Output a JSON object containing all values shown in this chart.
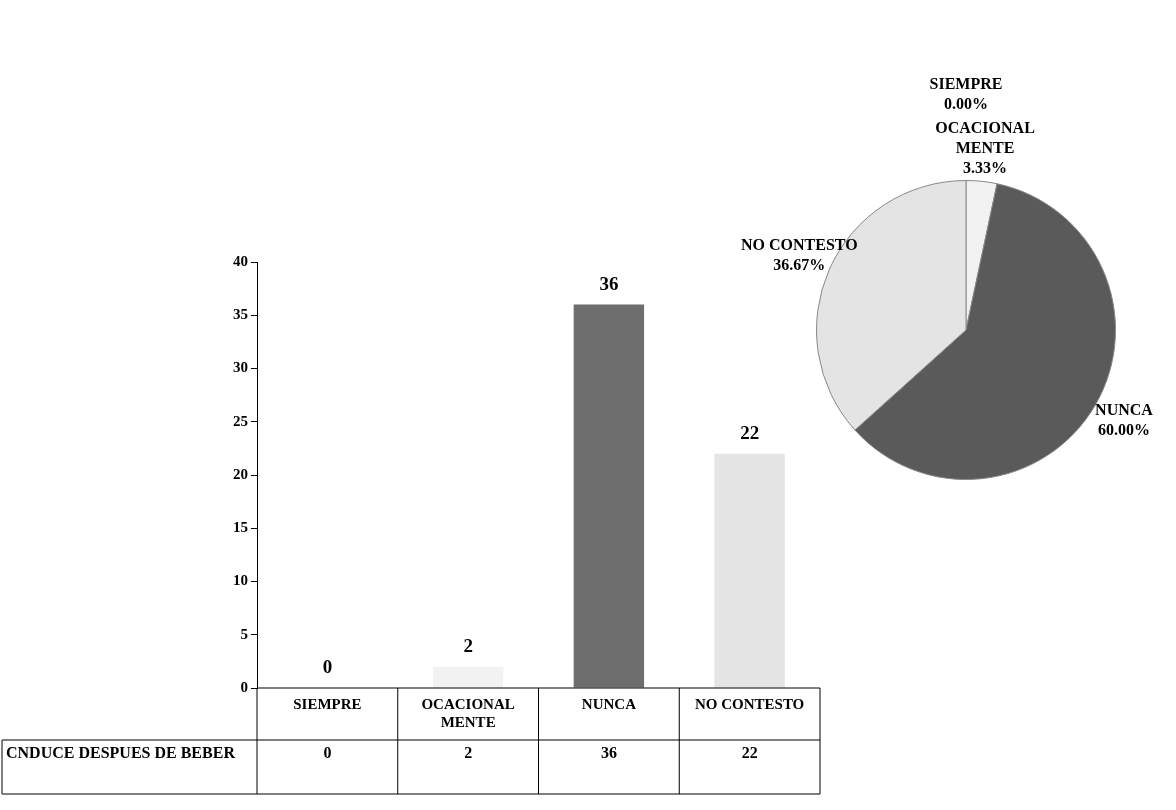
{
  "chart_data": [
    {
      "type": "bar",
      "categories": [
        "SIEMPRE",
        "OCACIONAL MENTE",
        "NUNCA",
        "NO CONTESTO"
      ],
      "series": [
        {
          "name": "CNDUCE DESPUES DE BEBER",
          "colors": [
            "#f2f2f2",
            "#f2f2f2",
            "#6e6e6e",
            "#e4e4e4"
          ],
          "values": [
            0,
            2,
            36,
            22
          ]
        }
      ],
      "ylim": [
        0,
        40
      ],
      "yticks": [
        0,
        5,
        10,
        15,
        20,
        25,
        30,
        35,
        40
      ],
      "grid": false,
      "data_labels": true,
      "annotations": [
        "0",
        "2",
        "36",
        "22"
      ]
    },
    {
      "type": "pie",
      "categories": [
        "SIEMPRE",
        "OCACIONAL MENTE",
        "NUNCA",
        "NO CONTESTO"
      ],
      "values": [
        0,
        3.33,
        60,
        36.67
      ],
      "colors": [
        "#ffffff",
        "#f2f2f2",
        "#5a5a5a",
        "#e4e4e4"
      ],
      "value_labels": [
        "0.00%",
        "3.33%",
        "60.00%",
        "36.67%"
      ]
    }
  ]
}
